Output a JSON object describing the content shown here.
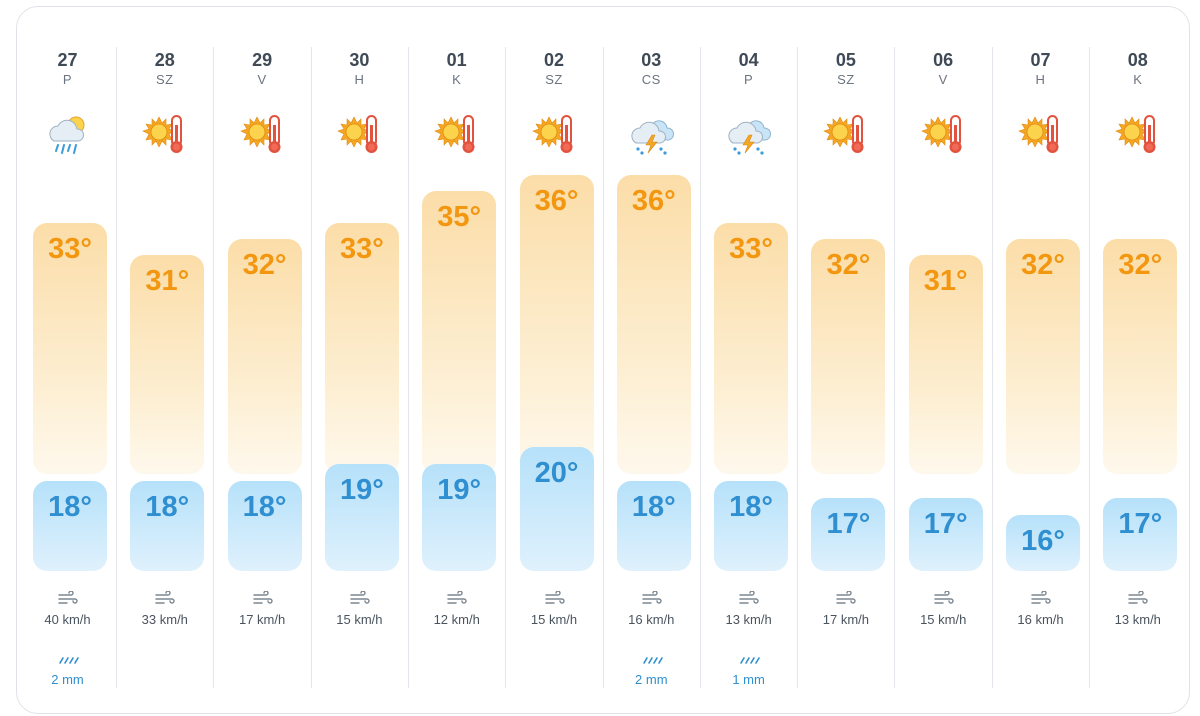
{
  "forecast": {
    "days": [
      {
        "date": "27",
        "weekday": "P",
        "icon": "rain-cloud-sun-icon",
        "high": "33°",
        "low": "18°",
        "high_value": 33,
        "low_value": 18,
        "wind": "40 km/h",
        "rain": "2 mm"
      },
      {
        "date": "28",
        "weekday": "SZ",
        "icon": "sun-thermometer-icon",
        "high": "31°",
        "low": "18°",
        "high_value": 31,
        "low_value": 18,
        "wind": "33 km/h",
        "rain": ""
      },
      {
        "date": "29",
        "weekday": "V",
        "icon": "sun-thermometer-icon",
        "high": "32°",
        "low": "18°",
        "high_value": 32,
        "low_value": 18,
        "wind": "17 km/h",
        "rain": ""
      },
      {
        "date": "30",
        "weekday": "H",
        "icon": "sun-thermometer-icon",
        "high": "33°",
        "low": "19°",
        "high_value": 33,
        "low_value": 19,
        "wind": "15 km/h",
        "rain": ""
      },
      {
        "date": "01",
        "weekday": "K",
        "icon": "sun-thermometer-icon",
        "high": "35°",
        "low": "19°",
        "high_value": 35,
        "low_value": 19,
        "wind": "12 km/h",
        "rain": ""
      },
      {
        "date": "02",
        "weekday": "SZ",
        "icon": "sun-thermometer-icon",
        "high": "36°",
        "low": "20°",
        "high_value": 36,
        "low_value": 20,
        "wind": "15 km/h",
        "rain": ""
      },
      {
        "date": "03",
        "weekday": "CS",
        "icon": "thunderstorm-cloud-icon",
        "high": "36°",
        "low": "18°",
        "high_value": 36,
        "low_value": 18,
        "wind": "16 km/h",
        "rain": "2 mm"
      },
      {
        "date": "04",
        "weekday": "P",
        "icon": "thunderstorm-cloud-icon",
        "high": "33°",
        "low": "18°",
        "high_value": 33,
        "low_value": 18,
        "wind": "13 km/h",
        "rain": "1 mm"
      },
      {
        "date": "05",
        "weekday": "SZ",
        "icon": "sun-thermometer-icon",
        "high": "32°",
        "low": "17°",
        "high_value": 32,
        "low_value": 17,
        "wind": "17 km/h",
        "rain": ""
      },
      {
        "date": "06",
        "weekday": "V",
        "icon": "sun-thermometer-icon",
        "high": "31°",
        "low": "17°",
        "high_value": 31,
        "low_value": 17,
        "wind": "15 km/h",
        "rain": ""
      },
      {
        "date": "07",
        "weekday": "H",
        "icon": "sun-thermometer-icon",
        "high": "32°",
        "low": "16°",
        "high_value": 32,
        "low_value": 16,
        "wind": "16 km/h",
        "rain": ""
      },
      {
        "date": "08",
        "weekday": "K",
        "icon": "sun-thermometer-icon",
        "high": "32°",
        "low": "17°",
        "high_value": 32,
        "low_value": 17,
        "wind": "13 km/h",
        "rain": ""
      }
    ],
    "colors": {
      "high_text": "#f39610",
      "low_text": "#2f8fd0",
      "high_bar": "#fbdda8",
      "low_bar": "#b6e1fa",
      "rain_text": "#2f8fd0"
    }
  }
}
